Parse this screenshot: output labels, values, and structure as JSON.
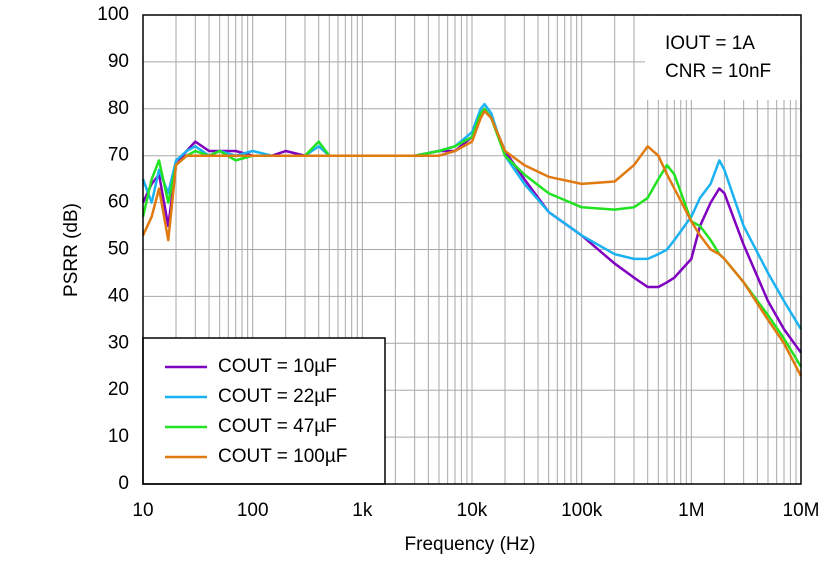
{
  "chart_data": {
    "type": "line",
    "x_label": "Frequency (Hz)",
    "y_label": "PSRR (dB)",
    "annotations": [
      "IOUT = 1A",
      "CNR = 10nF"
    ],
    "log_x": true,
    "grid": true,
    "legend": "lower left",
    "xlim": [
      10,
      10000000
    ],
    "ylim": [
      0,
      100
    ],
    "xticks": [
      10,
      100,
      {
        "value": 1000,
        "label": "1k"
      },
      {
        "value": 10000,
        "label": "10k"
      },
      {
        "value": 100000,
        "label": "100k"
      },
      {
        "value": 1000000,
        "label": "1M"
      },
      {
        "value": 10000000,
        "label": "10M"
      }
    ],
    "yticks": [
      0,
      10,
      20,
      30,
      40,
      50,
      60,
      70,
      80,
      90,
      100
    ],
    "x": [
      10,
      12,
      14,
      17,
      20,
      25,
      30,
      40,
      50,
      70,
      100,
      150,
      200,
      300,
      400,
      500,
      700,
      1000,
      2000,
      3000,
      5000,
      7000,
      10000,
      12000,
      13000,
      15000,
      20000,
      30000,
      50000,
      100000,
      200000,
      300000,
      400000,
      500000,
      600000,
      700000,
      1000000,
      1200000,
      1500000,
      1800000,
      2000000,
      3000000,
      5000000,
      7000000,
      10000000
    ],
    "series": [
      {
        "name": "COUT = 10µF",
        "color": "#7f00bf",
        "values": [
          60,
          64,
          66,
          55,
          68,
          71,
          73,
          71,
          71,
          71,
          70,
          70,
          71,
          70,
          70,
          70,
          70,
          70,
          70,
          70,
          71,
          71,
          74,
          79,
          80,
          78,
          71,
          65,
          58,
          53,
          47,
          44,
          42,
          42,
          43,
          44,
          48,
          55,
          60,
          63,
          62,
          51,
          39,
          33,
          28
        ]
      },
      {
        "name": "COUT = 22µF",
        "color": "#1ab2f0",
        "values": [
          65,
          60,
          67,
          62,
          69,
          71,
          72,
          70,
          71,
          70,
          71,
          70,
          70,
          70,
          72,
          70,
          70,
          70,
          70,
          70,
          71,
          72,
          75,
          80,
          81,
          79,
          70,
          64,
          58,
          53,
          49,
          48,
          48,
          49,
          50,
          52,
          57,
          61,
          64,
          69,
          67,
          55,
          45,
          39,
          33
        ]
      },
      {
        "name": "COUT = 47µF",
        "color": "#22e222",
        "values": [
          57,
          65,
          69,
          60,
          68,
          70,
          71,
          70,
          71,
          69,
          70,
          70,
          70,
          70,
          73,
          70,
          70,
          70,
          70,
          70,
          71,
          72,
          74,
          79,
          80,
          78,
          70,
          66,
          62,
          59,
          58.5,
          59,
          61,
          65,
          68,
          66,
          56,
          55,
          52,
          49,
          48,
          43,
          36,
          31,
          25
        ]
      },
      {
        "name": "COUT = 100µF",
        "color": "#e07a10",
        "values": [
          53,
          57,
          63,
          52,
          68,
          70,
          70,
          70,
          70,
          70,
          70,
          70,
          70,
          70,
          70,
          70,
          70,
          70,
          70,
          70,
          70,
          71,
          73,
          78,
          79.5,
          78,
          71,
          68,
          65.5,
          64,
          64.5,
          68,
          72,
          70,
          66,
          63,
          56,
          53,
          50,
          49,
          48,
          43,
          35,
          30,
          23
        ]
      }
    ]
  }
}
